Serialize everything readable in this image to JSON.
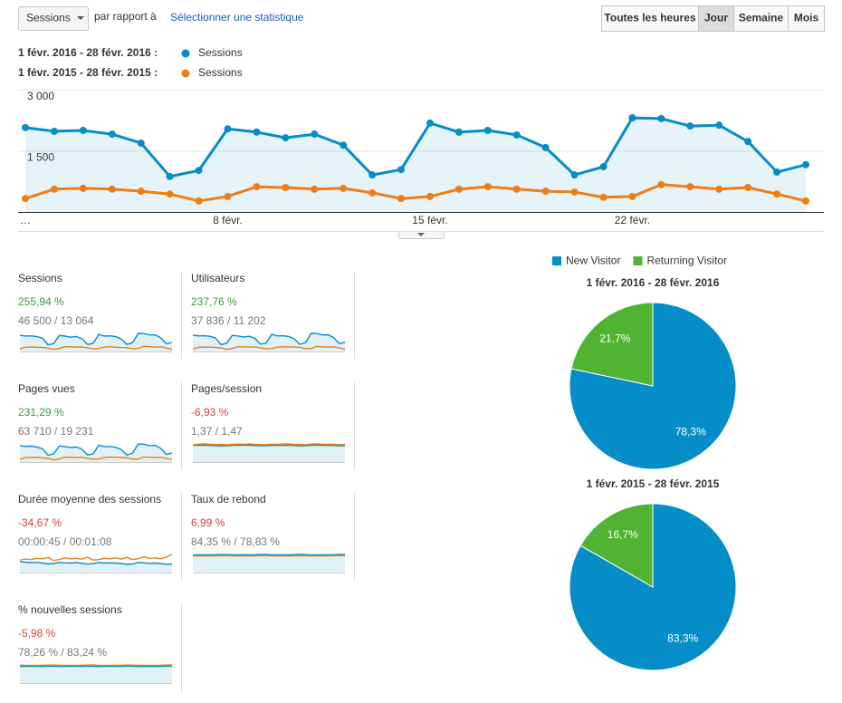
{
  "toolbar": {
    "metric": "Sessions",
    "compare_text": "par rapport à",
    "select_link": "Sélectionner une statistique",
    "buttons": [
      "Toutes les heures",
      "Jour",
      "Semaine",
      "Mois"
    ],
    "active_button": 1
  },
  "chart_data": [
    {
      "type": "line",
      "categories": [
        "…",
        null,
        null,
        null,
        null,
        null,
        null,
        "8 févr.",
        null,
        null,
        null,
        null,
        null,
        null,
        "15 févr.",
        null,
        null,
        null,
        null,
        null,
        null,
        "22 févr.",
        null,
        null,
        null,
        null,
        null,
        null
      ],
      "series": [
        {
          "period": "1 févr. 2016 - 28 févr. 2016 :",
          "name": "Sessions",
          "color": "#058dc7",
          "area": true,
          "values": [
            2070,
            1980,
            2000,
            1910,
            1690,
            870,
            1020,
            2040,
            1960,
            1820,
            1910,
            1640,
            910,
            1040,
            2180,
            1960,
            2000,
            1890,
            1580,
            910,
            1110,
            2310,
            2290,
            2110,
            2130,
            1730,
            980,
            1160
          ]
        },
        {
          "period": "1 févr. 2015 - 28 févr. 2015 :",
          "name": "Sessions",
          "color": "#ed7e17",
          "area": false,
          "values": [
            330,
            560,
            580,
            560,
            510,
            440,
            270,
            380,
            620,
            600,
            560,
            580,
            470,
            330,
            380,
            560,
            620,
            560,
            510,
            490,
            360,
            380,
            670,
            620,
            560,
            600,
            440,
            270
          ]
        }
      ],
      "ylim": [
        0,
        3000
      ],
      "yticks": [
        {
          "value": 1500,
          "label": "1 500"
        },
        {
          "value": 3000,
          "label": "3 000"
        }
      ],
      "grid": true
    },
    {
      "type": "pie",
      "title": "1 févr. 2016 - 28 févr. 2016",
      "categories": [
        "New Visitor",
        "Returning Visitor"
      ],
      "colors": [
        "#058dc7",
        "#50b432"
      ],
      "values": [
        78.3,
        21.7
      ],
      "value_labels": [
        "78,3%",
        "21,7%"
      ]
    },
    {
      "type": "pie",
      "title": "1 févr. 2015 - 28 févr. 2015",
      "categories": [
        "New Visitor",
        "Returning Visitor"
      ],
      "colors": [
        "#058dc7",
        "#50b432"
      ],
      "values": [
        83.3,
        16.7
      ],
      "value_labels": [
        "83,3%",
        "16,7%"
      ]
    }
  ],
  "scorecards": [
    {
      "label": "Sessions",
      "change": "255,94 %",
      "comparison": "46 500 / 13 064",
      "color": "#3c9b3c"
    },
    {
      "label": "Utilisateurs",
      "change": "237,76 %",
      "comparison": "37 836 / 11 202",
      "color": "#3c9b3c",
      "series": [
        {
          "color": "#058dc7",
          "values": [
            1680,
            1610,
            1620,
            1560,
            1390,
            720,
            840,
            1660,
            1600,
            1500,
            1560,
            1360,
            750,
            860,
            1760,
            1600,
            1620,
            1540,
            1300,
            740,
            900,
            1860,
            1840,
            1700,
            1720,
            1420,
            800,
            950
          ]
        },
        {
          "color": "#ed7e17",
          "values": [
            260,
            440,
            460,
            450,
            420,
            370,
            220,
            310,
            490,
            480,
            460,
            470,
            380,
            280,
            300,
            450,
            490,
            470,
            460,
            430,
            290,
            310,
            520,
            480,
            460,
            470,
            360,
            230
          ]
        }
      ]
    },
    {
      "label": "Pages vues",
      "change": "231,29 %",
      "comparison": "63 710 / 19 231",
      "color": "#3c9b3c",
      "series": [
        {
          "color": "#058dc7",
          "values": [
            2900,
            2750,
            2800,
            2650,
            2350,
            1200,
            1450,
            2850,
            2700,
            2550,
            2650,
            2300,
            1250,
            1450,
            3000,
            2700,
            2750,
            2600,
            2200,
            1250,
            1550,
            3200,
            3150,
            2900,
            2950,
            2400,
            1350,
            1600
          ]
        },
        {
          "color": "#ed7e17",
          "values": [
            480,
            780,
            820,
            800,
            740,
            640,
            380,
            550,
            870,
            850,
            800,
            830,
            660,
            480,
            540,
            790,
            860,
            830,
            800,
            760,
            500,
            540,
            900,
            850,
            810,
            830,
            640,
            400
          ]
        }
      ]
    },
    {
      "label": "Pages/session",
      "change": "-6,93 %",
      "comparison": "1,37 / 1,47",
      "color": "#d8403a",
      "series": [
        {
          "color": "#058dc7",
          "values": [
            1.38,
            1.39,
            1.4,
            1.37,
            1.36,
            1.33,
            1.35,
            1.39,
            1.38,
            1.4,
            1.39,
            1.37,
            1.34,
            1.36,
            1.38,
            1.39,
            1.38,
            1.39,
            1.37,
            1.35,
            1.36,
            1.39,
            1.4,
            1.38,
            1.39,
            1.37,
            1.34,
            1.36
          ]
        },
        {
          "color": "#ed7e17",
          "values": [
            1.42,
            1.48,
            1.5,
            1.47,
            1.45,
            1.46,
            1.43,
            1.47,
            1.49,
            1.48,
            1.5,
            1.46,
            1.44,
            1.45,
            1.48,
            1.47,
            1.49,
            1.5,
            1.46,
            1.45,
            1.44,
            1.49,
            1.5,
            1.48,
            1.47,
            1.46,
            1.44,
            1.45
          ]
        }
      ]
    },
    {
      "label": "Durée moyenne des sessions",
      "change": "-34,67 %",
      "comparison": "00:00:45 / 00:01:08",
      "color": "#d8403a",
      "series": [
        {
          "color": "#058dc7",
          "values": [
            50,
            48,
            46,
            47,
            44,
            40,
            42,
            47,
            45,
            44,
            46,
            43,
            39,
            41,
            46,
            44,
            45,
            44,
            42,
            38,
            40,
            46,
            45,
            43,
            44,
            42,
            38,
            40
          ]
        },
        {
          "color": "#ed7e17",
          "values": [
            58,
            62,
            60,
            66,
            64,
            70,
            56,
            60,
            68,
            64,
            66,
            62,
            72,
            58,
            60,
            66,
            64,
            68,
            62,
            70,
            60,
            64,
            74,
            66,
            68,
            64,
            72,
            84
          ]
        }
      ]
    },
    {
      "label": "Taux de rebond",
      "change": "6,99 %",
      "comparison": "84,35 % / 78,83 %",
      "color": "#d8403a",
      "series": [
        {
          "color": "#058dc7",
          "values": [
            83.5,
            84.0,
            83.8,
            84.2,
            84.6,
            85.5,
            85.0,
            83.9,
            84.1,
            84.3,
            84.0,
            84.5,
            85.8,
            85.2,
            83.6,
            84.0,
            83.9,
            84.2,
            84.8,
            85.6,
            85.0,
            83.4,
            83.5,
            83.9,
            83.8,
            84.6,
            85.7,
            85.1
          ]
        },
        {
          "color": "#ed7e17",
          "values": [
            79.5,
            78.6,
            78.4,
            78.8,
            79.0,
            79.3,
            80.1,
            78.9,
            78.5,
            78.7,
            78.4,
            78.9,
            79.6,
            80.0,
            78.8,
            78.6,
            78.5,
            78.7,
            79.1,
            79.8,
            79.4,
            78.3,
            78.5,
            78.6,
            78.8,
            79.2,
            79.9,
            80.2
          ]
        }
      ]
    },
    {
      "label": "% nouvelles sessions",
      "change": "-5,98 %",
      "comparison": "78,26 % / 83,24 %",
      "color": "#d8403a",
      "series": [
        {
          "color": "#058dc7",
          "values": [
            77.8,
            78.0,
            78.1,
            78.3,
            78.6,
            79.2,
            78.9,
            77.9,
            78.1,
            78.2,
            78.0,
            78.5,
            79.3,
            79.0,
            77.5,
            77.9,
            78.0,
            78.2,
            78.6,
            79.4,
            79.0,
            77.4,
            77.6,
            77.9,
            77.8,
            78.4,
            79.3,
            79.0
          ]
        },
        {
          "color": "#ed7e17",
          "values": [
            84.0,
            83.1,
            82.9,
            83.2,
            83.4,
            83.8,
            84.5,
            83.3,
            83.0,
            83.1,
            82.9,
            83.4,
            84.1,
            84.6,
            83.2,
            83.0,
            82.9,
            83.2,
            83.5,
            84.2,
            83.9,
            82.8,
            83.0,
            83.1,
            83.3,
            83.7,
            84.4,
            84.8
          ]
        }
      ]
    }
  ]
}
